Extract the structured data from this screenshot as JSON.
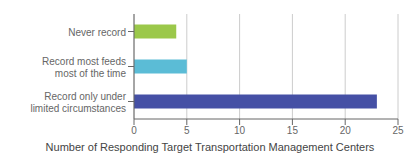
{
  "chart_data": {
    "type": "bar",
    "orientation": "horizontal",
    "categories": [
      "Record only under\nlimited circumstances",
      "Record most feeds\nmost of the time",
      "Never record"
    ],
    "values": [
      23,
      5,
      4
    ],
    "colors": [
      "#4550a5",
      "#5bbcd6",
      "#9bc84a"
    ],
    "xlabel": "Number of Responding Target Transportation Management Centers",
    "xlim": [
      0,
      25
    ],
    "xticks": [
      0,
      5,
      10,
      15,
      20,
      25
    ],
    "grid": true
  }
}
